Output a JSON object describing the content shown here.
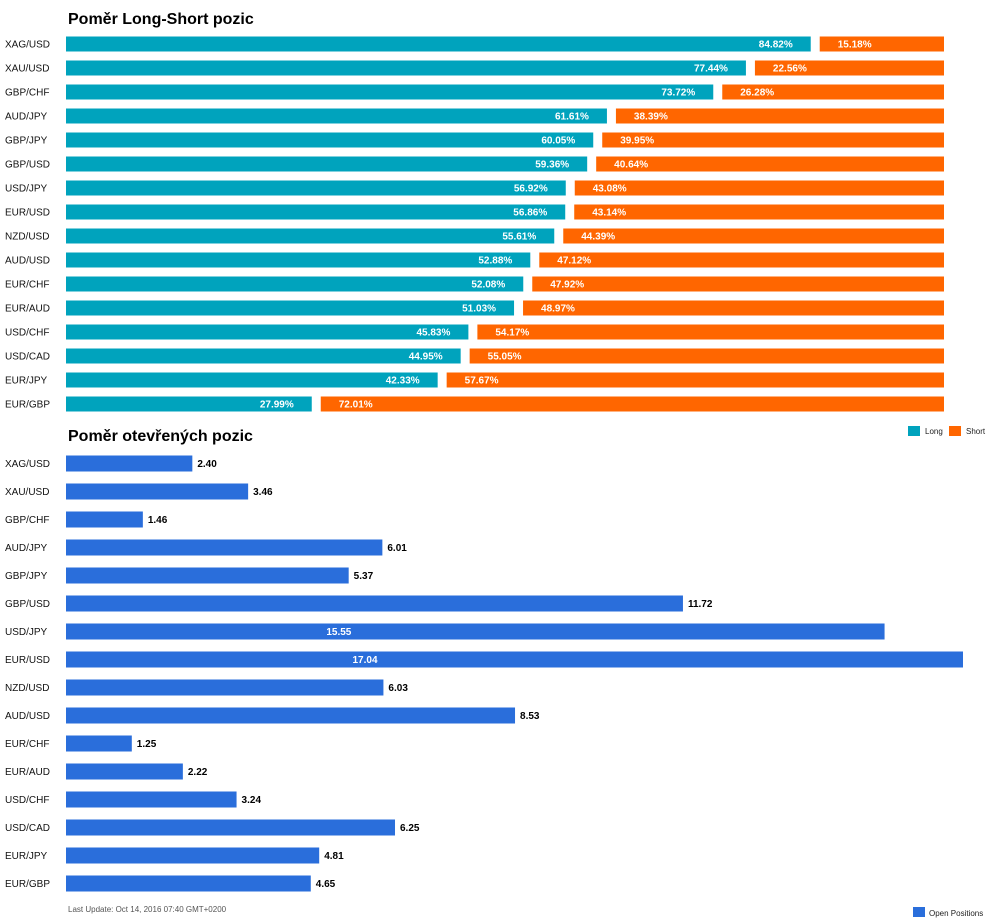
{
  "colors": {
    "long": "#00a3bd",
    "short": "#ff6600",
    "open": "#2a6edb"
  },
  "chart_data": [
    {
      "type": "bar",
      "orientation": "horizontal",
      "stacked": true,
      "title": "Poměr Long-Short pozic",
      "categories": [
        "XAG/USD",
        "XAU/USD",
        "GBP/CHF",
        "AUD/JPY",
        "GBP/JPY",
        "GBP/USD",
        "USD/JPY",
        "EUR/USD",
        "NZD/USD",
        "AUD/USD",
        "EUR/CHF",
        "EUR/AUD",
        "USD/CHF",
        "USD/CAD",
        "EUR/JPY",
        "EUR/GBP"
      ],
      "series": [
        {
          "name": "Long",
          "values": [
            84.82,
            77.44,
            73.72,
            61.61,
            60.05,
            59.36,
            56.92,
            56.86,
            55.61,
            52.88,
            52.08,
            51.03,
            45.83,
            44.95,
            42.33,
            27.99
          ],
          "labels": [
            "84.82%",
            "77.44%",
            "73.72%",
            "61.61%",
            "60.05%",
            "59.36%",
            "56.92%",
            "56.86%",
            "55.61%",
            "52.88%",
            "52.08%",
            "51.03%",
            "45.83%",
            "44.95%",
            "42.33%",
            "27.99%"
          ]
        },
        {
          "name": "Short",
          "values": [
            15.18,
            22.56,
            26.28,
            38.39,
            39.95,
            40.64,
            43.08,
            43.14,
            44.39,
            47.12,
            47.92,
            48.97,
            54.17,
            55.05,
            57.67,
            72.01
          ],
          "labels": [
            "15.18%",
            "22.56%",
            "26.28%",
            "38.39%",
            "39.95%",
            "40.64%",
            "43.08%",
            "43.14%",
            "44.39%",
            "47.12%",
            "47.92%",
            "48.97%",
            "54.17%",
            "55.05%",
            "57.67%",
            "72.01%"
          ]
        }
      ],
      "xlim": [
        0,
        100
      ],
      "grid": false,
      "legend": "bottom-right"
    },
    {
      "type": "bar",
      "orientation": "horizontal",
      "title": "Poměr otevřených pozic",
      "categories": [
        "XAG/USD",
        "XAU/USD",
        "GBP/CHF",
        "AUD/JPY",
        "GBP/JPY",
        "GBP/USD",
        "USD/JPY",
        "EUR/USD",
        "NZD/USD",
        "AUD/USD",
        "EUR/CHF",
        "EUR/AUD",
        "USD/CHF",
        "USD/CAD",
        "EUR/JPY",
        "EUR/GBP"
      ],
      "series": [
        {
          "name": "Open Positions",
          "values": [
            2.4,
            3.46,
            1.46,
            6.01,
            5.37,
            11.72,
            15.55,
            17.04,
            6.03,
            8.53,
            1.25,
            2.22,
            3.24,
            6.25,
            4.81,
            4.65
          ],
          "labels": [
            "2.40",
            "3.46",
            "1.46",
            "6.01",
            "5.37",
            "11.72",
            "15.55",
            "17.04",
            "6.03",
            "8.53",
            "1.25",
            "2.22",
            "3.24",
            "6.25",
            "4.81",
            "4.65"
          ]
        }
      ],
      "xlim": [
        0,
        17.04
      ],
      "grid": false,
      "legend": "bottom-right"
    }
  ],
  "footer": {
    "last_update": "Last Update: Oct 14, 2016 07:40 GMT+0200"
  }
}
